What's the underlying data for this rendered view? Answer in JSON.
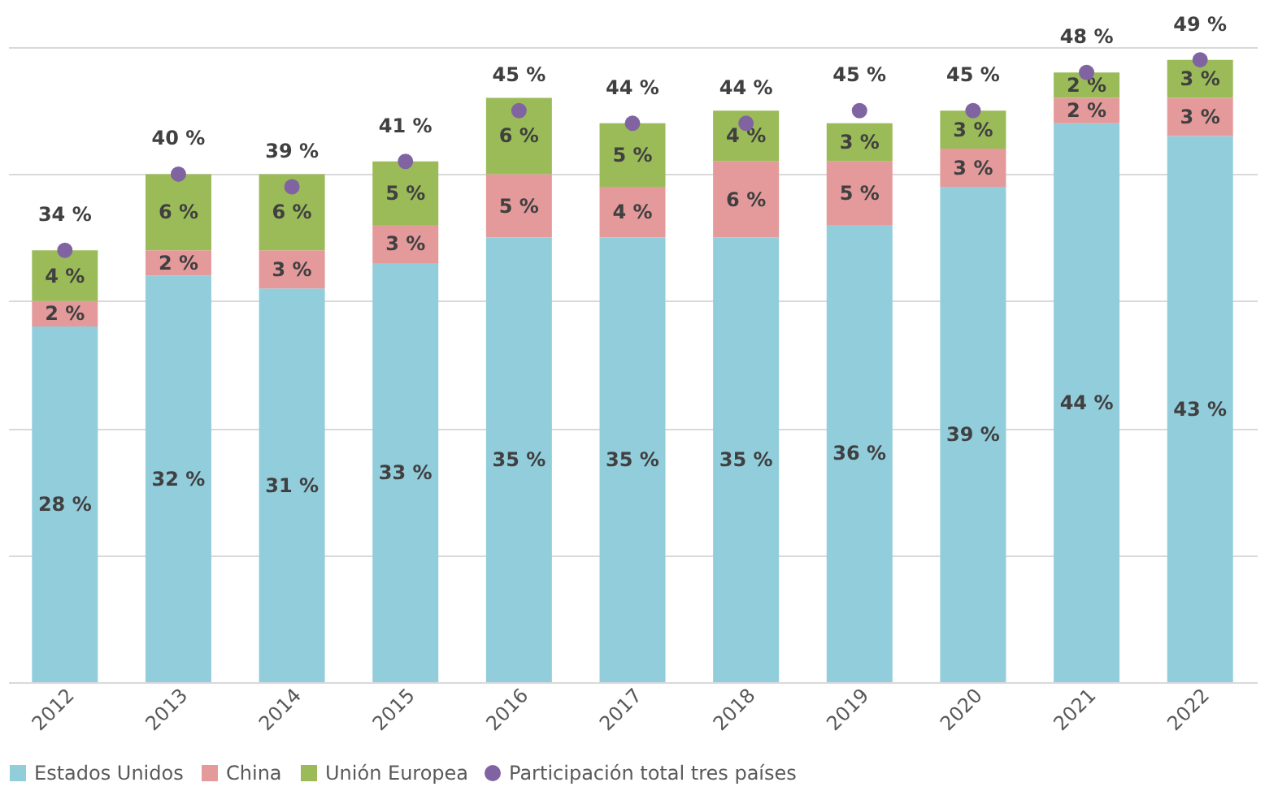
{
  "chart_data": {
    "type": "bar",
    "stacked": true,
    "categories": [
      "2012",
      "2013",
      "2014",
      "2015",
      "2016",
      "2017",
      "2018",
      "2019",
      "2020",
      "2021",
      "2022"
    ],
    "series": [
      {
        "name": "Estados Unidos",
        "color": "#92cddc",
        "values": [
          28,
          32,
          31,
          33,
          35,
          35,
          35,
          36,
          39,
          44,
          43
        ],
        "value_labels": [
          "28 %",
          "32 %",
          "31 %",
          "33 %",
          "35 %",
          "35 %",
          "35 %",
          "36 %",
          "39 %",
          "44 %",
          "43 %"
        ]
      },
      {
        "name": "China",
        "color": "#e49a9b",
        "values": [
          2,
          2,
          3,
          3,
          5,
          4,
          6,
          5,
          3,
          2,
          3
        ],
        "value_labels": [
          "2 %",
          "2 %",
          "3 %",
          "3 %",
          "5 %",
          "4 %",
          "6 %",
          "5 %",
          "3 %",
          "2 %",
          "3 %"
        ]
      },
      {
        "name": "Unión Europea",
        "color": "#9bbb59",
        "values": [
          4,
          6,
          6,
          5,
          6,
          5,
          4,
          3,
          3,
          2,
          3
        ],
        "value_labels": [
          "4 %",
          "6 %",
          "6 %",
          "5 %",
          "6 %",
          "5 %",
          "4 %",
          "3 %",
          "3 %",
          "2 %",
          "3 %"
        ]
      },
      {
        "name": "Participación total tres países",
        "type": "scatter",
        "color": "#8064a2",
        "values": [
          34,
          40,
          39,
          41,
          45,
          44,
          44,
          45,
          45,
          48,
          49
        ],
        "value_labels": [
          "34 %",
          "40 %",
          "39 %",
          "41 %",
          "45 %",
          "44 %",
          "44 %",
          "45 %",
          "45 %",
          "48 %",
          "49 %"
        ]
      }
    ],
    "ylim": [
      0,
      50
    ],
    "yticks": [
      {
        "value": 0,
        "label": null
      },
      {
        "value": 10,
        "label": null
      },
      {
        "value": 20,
        "label": null
      },
      {
        "value": 30,
        "label": null
      },
      {
        "value": 40,
        "label": null
      },
      {
        "value": 50,
        "label": null
      }
    ],
    "tick_labels": "x",
    "grid": "y",
    "legend": "bottom",
    "marker": "circle"
  }
}
